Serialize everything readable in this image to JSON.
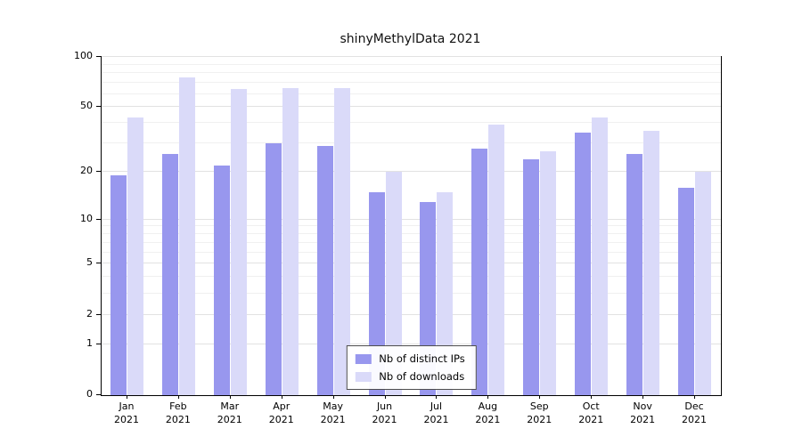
{
  "chart_data": {
    "type": "bar",
    "title": "shinyMethylData 2021",
    "categories": [
      "Jan",
      "Feb",
      "Mar",
      "Apr",
      "May",
      "Jun",
      "Jul",
      "Aug",
      "Sep",
      "Oct",
      "Nov",
      "Dec"
    ],
    "x_year": "2021",
    "series": [
      {
        "name": "Nb of distinct IPs",
        "color": "#9897ee",
        "values": [
          19,
          26,
          22,
          30,
          29,
          15,
          13,
          28,
          24,
          35,
          26,
          16
        ]
      },
      {
        "name": "Nb of downloads",
        "color": "#dadaf9",
        "values": [
          43,
          75,
          64,
          65,
          65,
          20,
          15,
          39,
          27,
          43,
          36,
          20
        ]
      }
    ],
    "yticks": [
      0,
      1,
      2,
      5,
      10,
      20,
      50,
      100
    ],
    "ylim": [
      0,
      100
    ],
    "y_scale": "log10(value+1)",
    "grid": true,
    "legend_position": "bottom-center"
  }
}
